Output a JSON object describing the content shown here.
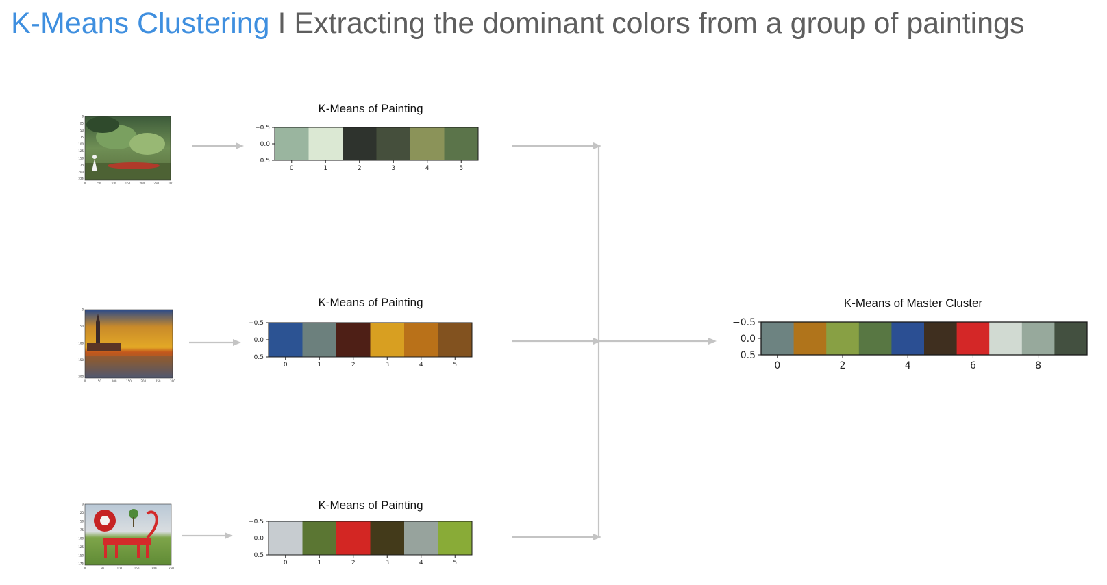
{
  "header": {
    "title_accent": "K-Means Clustering",
    "title_rest": " I Extracting the dominant colors from a group of paintings"
  },
  "paintings": [
    {
      "name": "painting-1",
      "thumb": {
        "y_ticks": [
          "0",
          "25",
          "50",
          "75",
          "100",
          "125",
          "150",
          "175",
          "200",
          "225"
        ],
        "x_ticks": [
          "0",
          "50",
          "100",
          "150",
          "200",
          "250",
          "300"
        ]
      },
      "chart": {
        "title": "K-Means  of Painting",
        "y_ticks": [
          "−0.5",
          "0.0",
          "0.5"
        ],
        "x_ticks": [
          "0",
          "1",
          "2",
          "3",
          "4",
          "5"
        ],
        "colors": [
          "#9ab59f",
          "#dbe8d3",
          "#2e332d",
          "#454f3c",
          "#8b9359",
          "#5b744a"
        ]
      }
    },
    {
      "name": "painting-2",
      "thumb": {
        "y_ticks": [
          "0",
          "50",
          "100",
          "150",
          "200"
        ],
        "x_ticks": [
          "0",
          "50",
          "100",
          "150",
          "200",
          "250",
          "300"
        ]
      },
      "chart": {
        "title": "K-Means  of Painting",
        "y_ticks": [
          "−0.5",
          "0.0",
          "0.5"
        ],
        "x_ticks": [
          "0",
          "1",
          "2",
          "3",
          "4",
          "5"
        ],
        "colors": [
          "#2c5393",
          "#6c807d",
          "#4e1f16",
          "#d89f21",
          "#b97119",
          "#82521f"
        ]
      }
    },
    {
      "name": "painting-3",
      "thumb": {
        "y_ticks": [
          "0",
          "25",
          "50",
          "75",
          "100",
          "125",
          "150",
          "175"
        ],
        "x_ticks": [
          "0",
          "50",
          "100",
          "150",
          "200",
          "250"
        ]
      },
      "chart": {
        "title": "K-Means  of Painting",
        "y_ticks": [
          "−0.5",
          "0.0",
          "0.5"
        ],
        "x_ticks": [
          "0",
          "1",
          "2",
          "3",
          "4",
          "5"
        ],
        "colors": [
          "#c7ccd0",
          "#5b7633",
          "#d32623",
          "#433a1a",
          "#97a39d",
          "#89ab37"
        ]
      }
    }
  ],
  "master": {
    "title": "K-Means  of Master Cluster",
    "y_ticks": [
      "−0.5",
      "0.0",
      "0.5"
    ],
    "x_ticks": [
      "0",
      "2",
      "4",
      "6",
      "8"
    ],
    "colors": [
      "#6d8381",
      "#b0741b",
      "#88a044",
      "#587743",
      "#2b4f93",
      "#3f2f1f",
      "#d42727",
      "#d1dad2",
      "#97a99c",
      "#435040"
    ]
  }
}
